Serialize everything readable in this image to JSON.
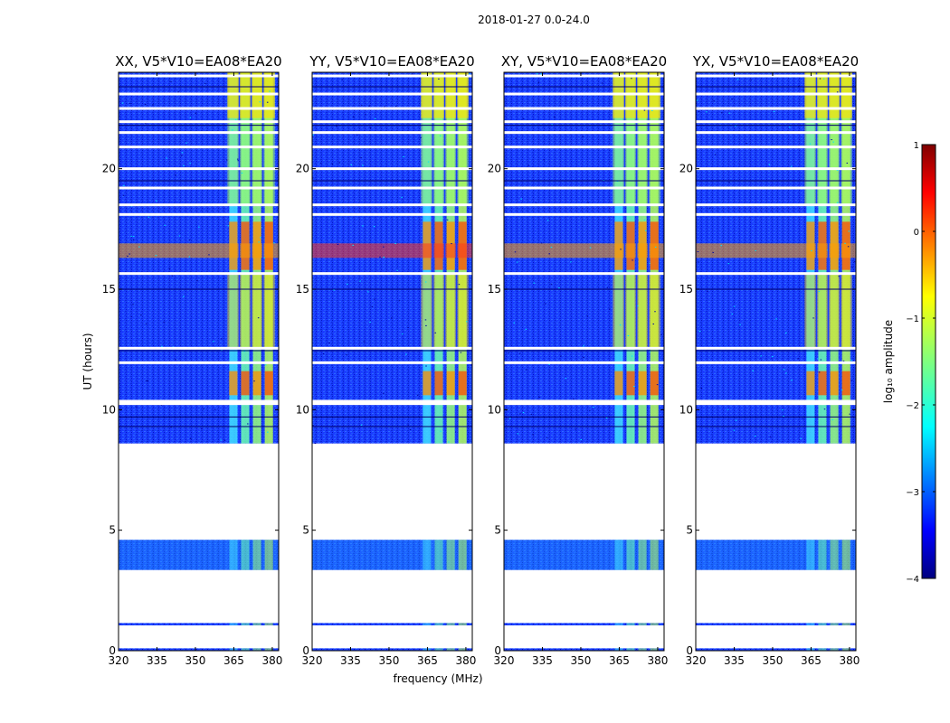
{
  "chart_data": {
    "type": "heatmap",
    "suptitle": "2018-01-27 0.0-24.0",
    "xlabel": "frequency (MHz)",
    "ylabel": "UT (hours)",
    "x_ticks": [
      320,
      335,
      350,
      365,
      380
    ],
    "xlim": [
      320,
      382.5
    ],
    "y_ticks": [
      0,
      5,
      10,
      15,
      20
    ],
    "ylim": [
      0,
      24
    ],
    "panels": [
      {
        "title": "XX, V5*V10=EA08*EA20"
      },
      {
        "title": "YY, V5*V10=EA08*EA20"
      },
      {
        "title": "XY, V5*V10=EA08*EA20"
      },
      {
        "title": "YX, V5*V10=EA08*EA20"
      }
    ],
    "colorbar": {
      "label": "log₁₀ amplitude",
      "range": [
        -4,
        1
      ],
      "ticks": [
        1,
        0,
        -1,
        -2,
        -3,
        -4
      ],
      "colormap": "jet"
    },
    "data_segments_hours": [
      [
        0.0,
        0.1
      ],
      [
        1.05,
        1.15
      ],
      [
        3.35,
        4.6
      ],
      [
        8.6,
        24.0
      ]
    ],
    "gaps_hours": [
      10.25,
      10.35,
      11.95,
      12.55,
      15.65,
      18.1,
      18.5,
      19.2,
      20.0,
      20.9,
      21.5,
      21.95,
      22.5,
      23.1,
      23.85
    ],
    "rfi_band_mhz": [
      362.5,
      381.0
    ],
    "strong_rfi_hours": [
      [
        10.6,
        11.6
      ],
      [
        15.8,
        17.8
      ]
    ]
  }
}
